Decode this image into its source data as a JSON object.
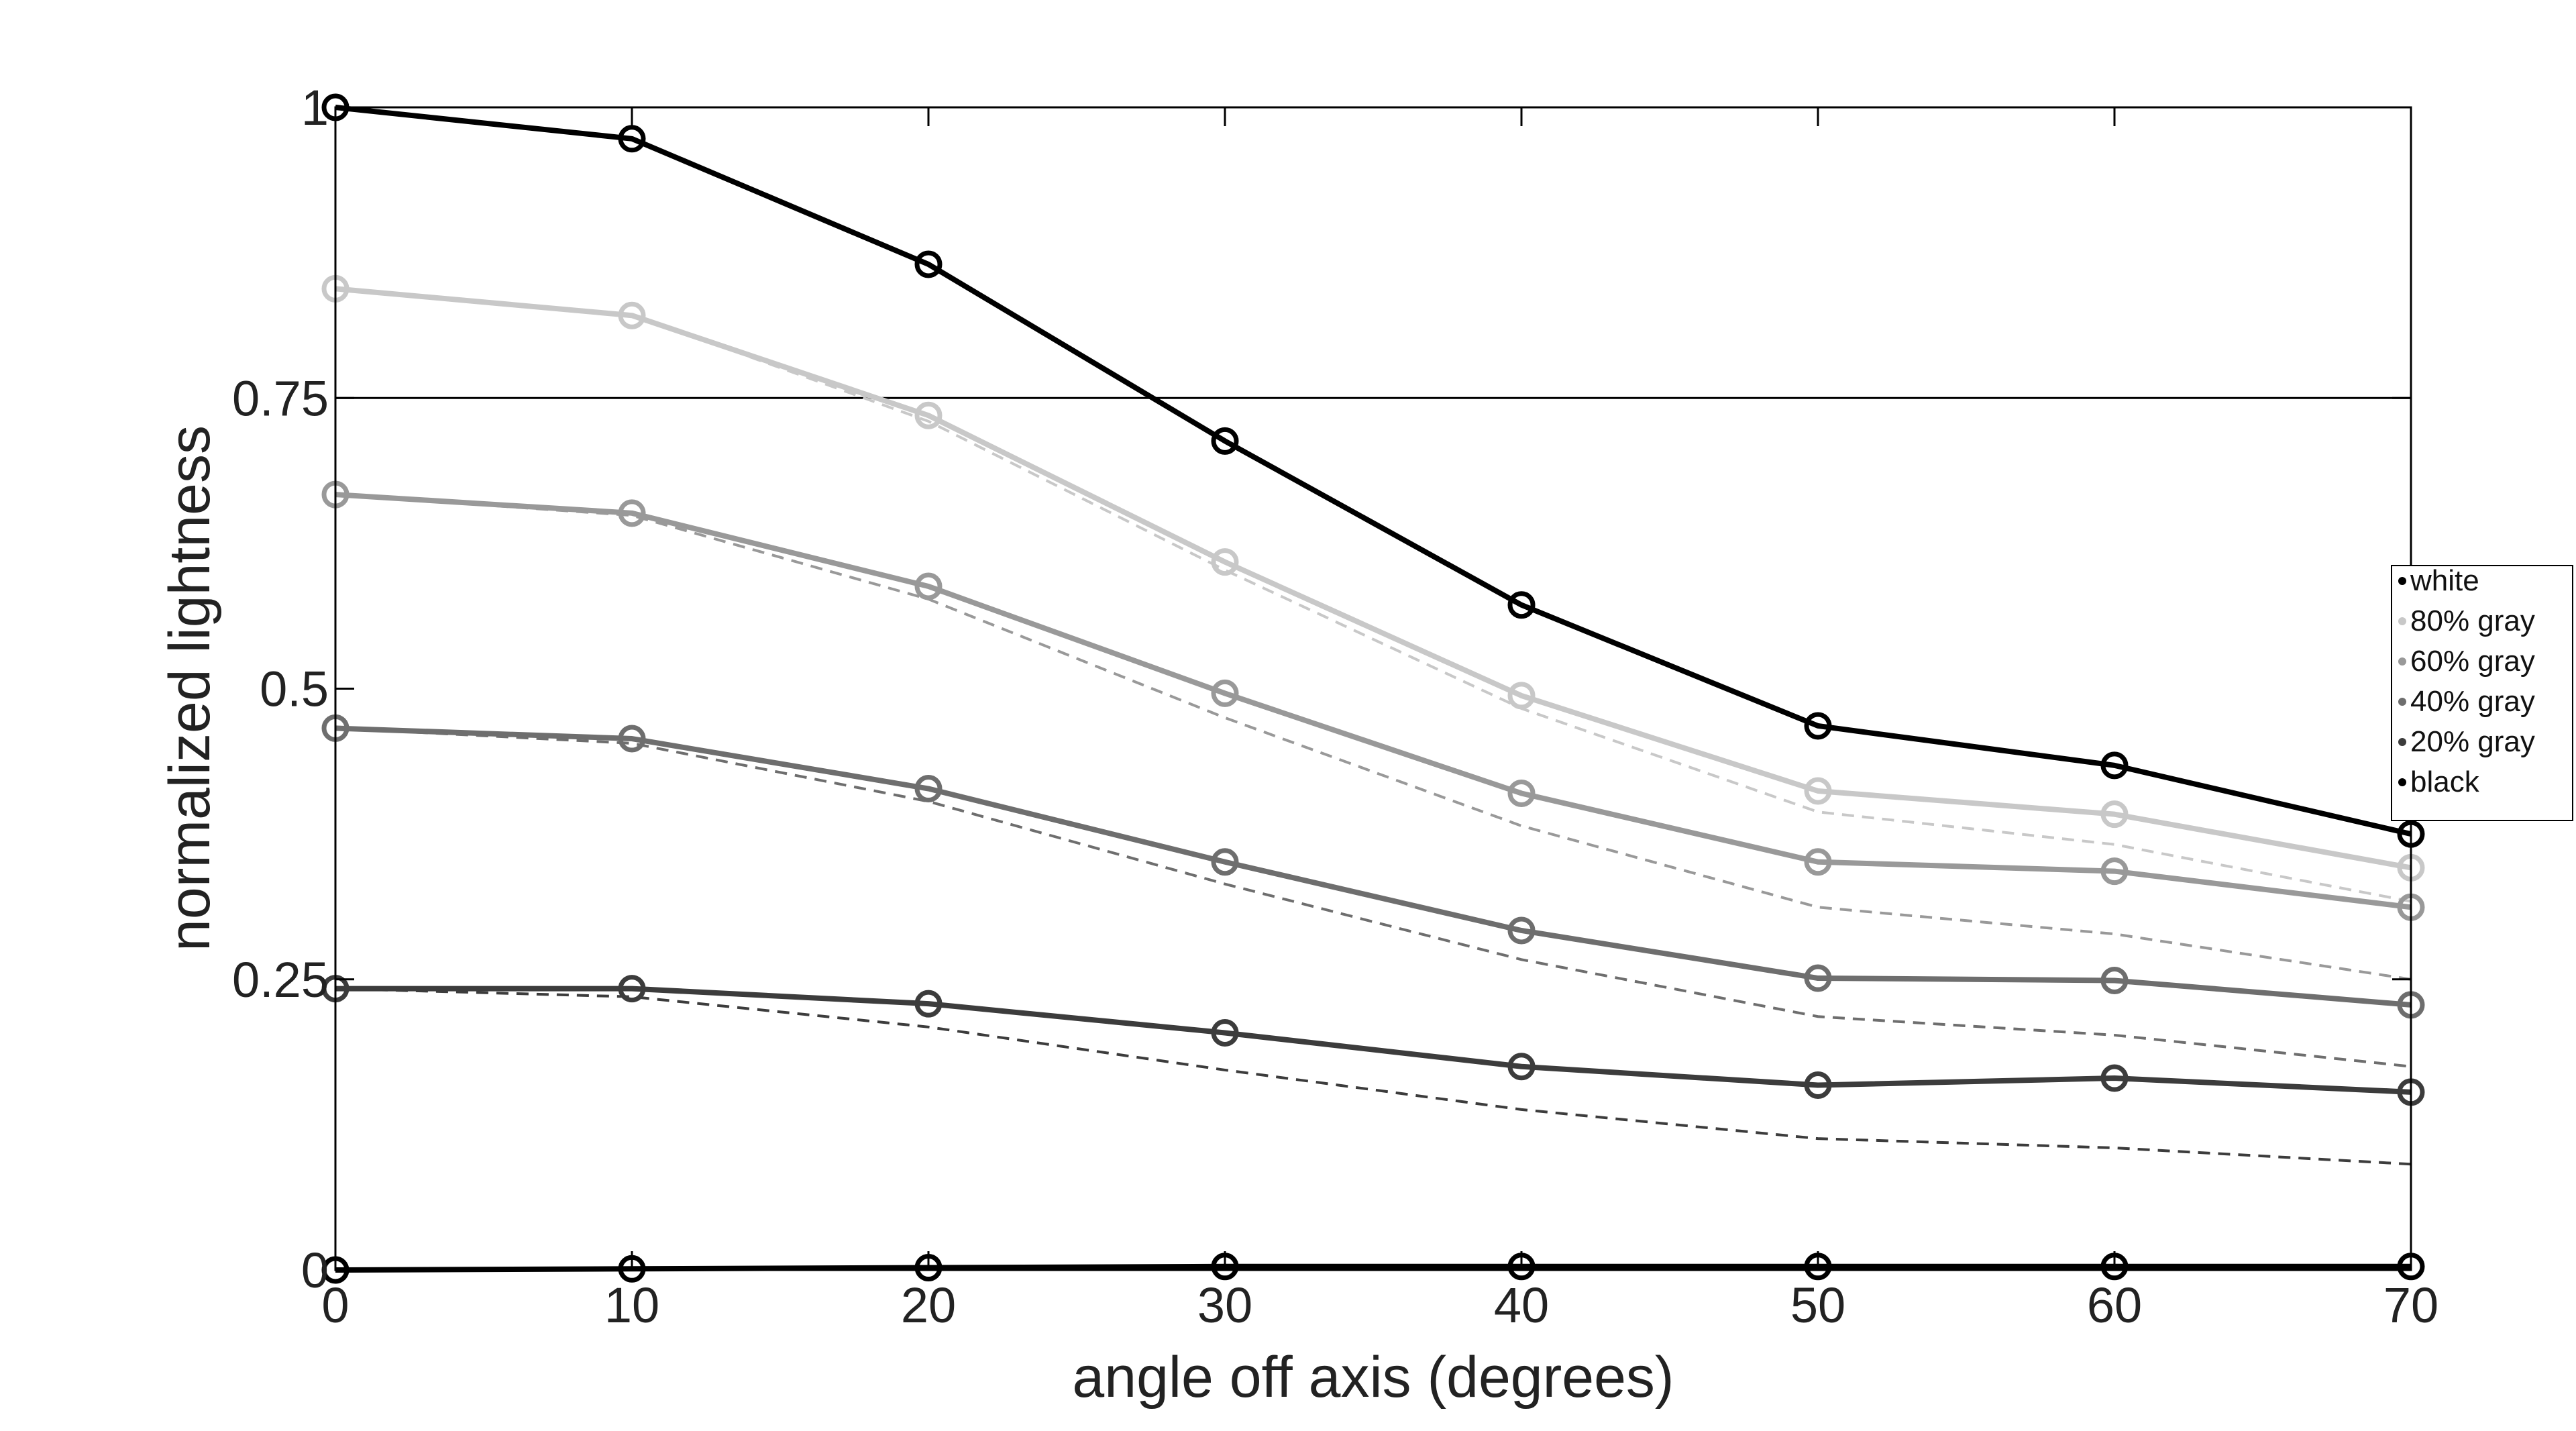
{
  "chart_data": {
    "type": "line",
    "title": "",
    "xlabel": "angle off axis (degrees)",
    "ylabel": "normalized lightness",
    "xlim": [
      0,
      70
    ],
    "ylim": [
      0,
      1
    ],
    "x": [
      0,
      10,
      20,
      30,
      40,
      50,
      60,
      70
    ],
    "x_ticks": [
      "0",
      "10",
      "20",
      "30",
      "40",
      "50",
      "60",
      "70"
    ],
    "y_ticks": [
      {
        "value": 0,
        "label": "0"
      },
      {
        "value": 0.25,
        "label": "0.25"
      },
      {
        "value": 0.5,
        "label": "0.5"
      },
      {
        "value": 0.75,
        "label": "0.75"
      },
      {
        "value": 1,
        "label": "1"
      }
    ],
    "grid": false,
    "reference_line": {
      "y": 0.75
    },
    "legend": {
      "placement": "right"
    },
    "series": [
      {
        "name": "white",
        "color": "#000000",
        "values": [
          1.0,
          0.973,
          0.865,
          0.713,
          0.572,
          0.468,
          0.434,
          0.375
        ]
      },
      {
        "name": "80% gray",
        "color": "#c8c8c8",
        "values": [
          0.844,
          0.821,
          0.735,
          0.609,
          0.494,
          0.412,
          0.392,
          0.346
        ]
      },
      {
        "name": "60% gray",
        "color": "#999999",
        "values": [
          0.667,
          0.651,
          0.588,
          0.496,
          0.41,
          0.351,
          0.343,
          0.312
        ]
      },
      {
        "name": "40% gray",
        "color": "#6e6e6e",
        "values": [
          0.466,
          0.457,
          0.414,
          0.351,
          0.292,
          0.251,
          0.249,
          0.228
        ]
      },
      {
        "name": "20% gray",
        "color": "#3c3c3c",
        "values": [
          0.242,
          0.242,
          0.229,
          0.204,
          0.175,
          0.159,
          0.165,
          0.153
        ]
      },
      {
        "name": "black",
        "color": "#000000",
        "values": [
          0.0,
          0.001,
          0.002,
          0.003,
          0.003,
          0.003,
          0.003,
          0.003
        ]
      }
    ],
    "reference_series": [
      {
        "color": "#c8c8c8",
        "values": [
          0.844,
          0.822,
          0.73,
          0.602,
          0.483,
          0.394,
          0.366,
          0.317
        ]
      },
      {
        "color": "#999999",
        "values": [
          0.667,
          0.649,
          0.577,
          0.475,
          0.382,
          0.312,
          0.289,
          0.25
        ]
      },
      {
        "color": "#6e6e6e",
        "values": [
          0.466,
          0.453,
          0.403,
          0.332,
          0.267,
          0.218,
          0.202,
          0.175
        ]
      },
      {
        "color": "#3c3c3c",
        "values": [
          0.242,
          0.235,
          0.209,
          0.172,
          0.138,
          0.113,
          0.105,
          0.091
        ]
      }
    ]
  }
}
